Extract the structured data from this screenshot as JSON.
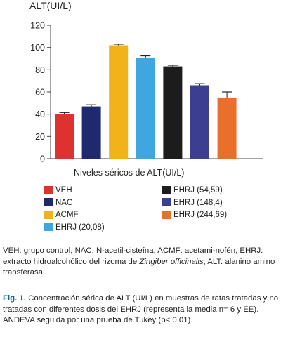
{
  "chart_data": {
    "type": "bar",
    "title": "ALT(UI/L)",
    "xlabel": "Niveles séricos de ALT(UI/L)",
    "ylabel": "",
    "ylim": [
      0,
      120
    ],
    "yticks": [
      0,
      20,
      40,
      60,
      80,
      100,
      120
    ],
    "categories": [
      "VEH",
      "NAC",
      "ACMF",
      "EHRJ (20,08)",
      "EHRJ (54,59)",
      "EHRJ (148,4)",
      "EHRJ (244,69)"
    ],
    "values": [
      40,
      47,
      102,
      91,
      83,
      66,
      55
    ],
    "errors": [
      1.5,
      1.5,
      1,
      1.5,
      1,
      1.5,
      5
    ],
    "colors": [
      "#e03131",
      "#1f2a6e",
      "#f2b21a",
      "#3ea7e0",
      "#1c1c1c",
      "#3b3e91",
      "#e8702a"
    ],
    "legend": [
      {
        "label": "VEH",
        "color": "#e03131"
      },
      {
        "label": "NAC",
        "color": "#1f2a6e"
      },
      {
        "label": "ACMF",
        "color": "#f2b21a"
      },
      {
        "label": "EHRJ (20,08)",
        "color": "#3ea7e0"
      },
      {
        "label": "EHRJ (54,59)",
        "color": "#1c1c1c"
      },
      {
        "label": "EHRJ (148,4)",
        "color": "#3b3e91"
      },
      {
        "label": "EHRJ (244,69)",
        "color": "#e8702a"
      }
    ]
  },
  "notes": {
    "abbrev_part1": "VEH: grupo  control, NAC: N-acetil-cisteína, ACMF: acetami-nofén, EHRJ: extracto hidroalcohólico del rizoma de ",
    "abbrev_species": "Zingiber officinalis",
    "abbrev_part2": ", ALT: alanino amino transferasa."
  },
  "caption": {
    "label": "Fig. 1.",
    "text": " Concentración sérica de ALT (UI/L) en muestras de ratas tratadas y no tratadas con diferentes dosis del EHRJ (representa la media n= 6 y EE). ANDEVA seguida por una prueba de Tukey (p< 0,01)."
  }
}
